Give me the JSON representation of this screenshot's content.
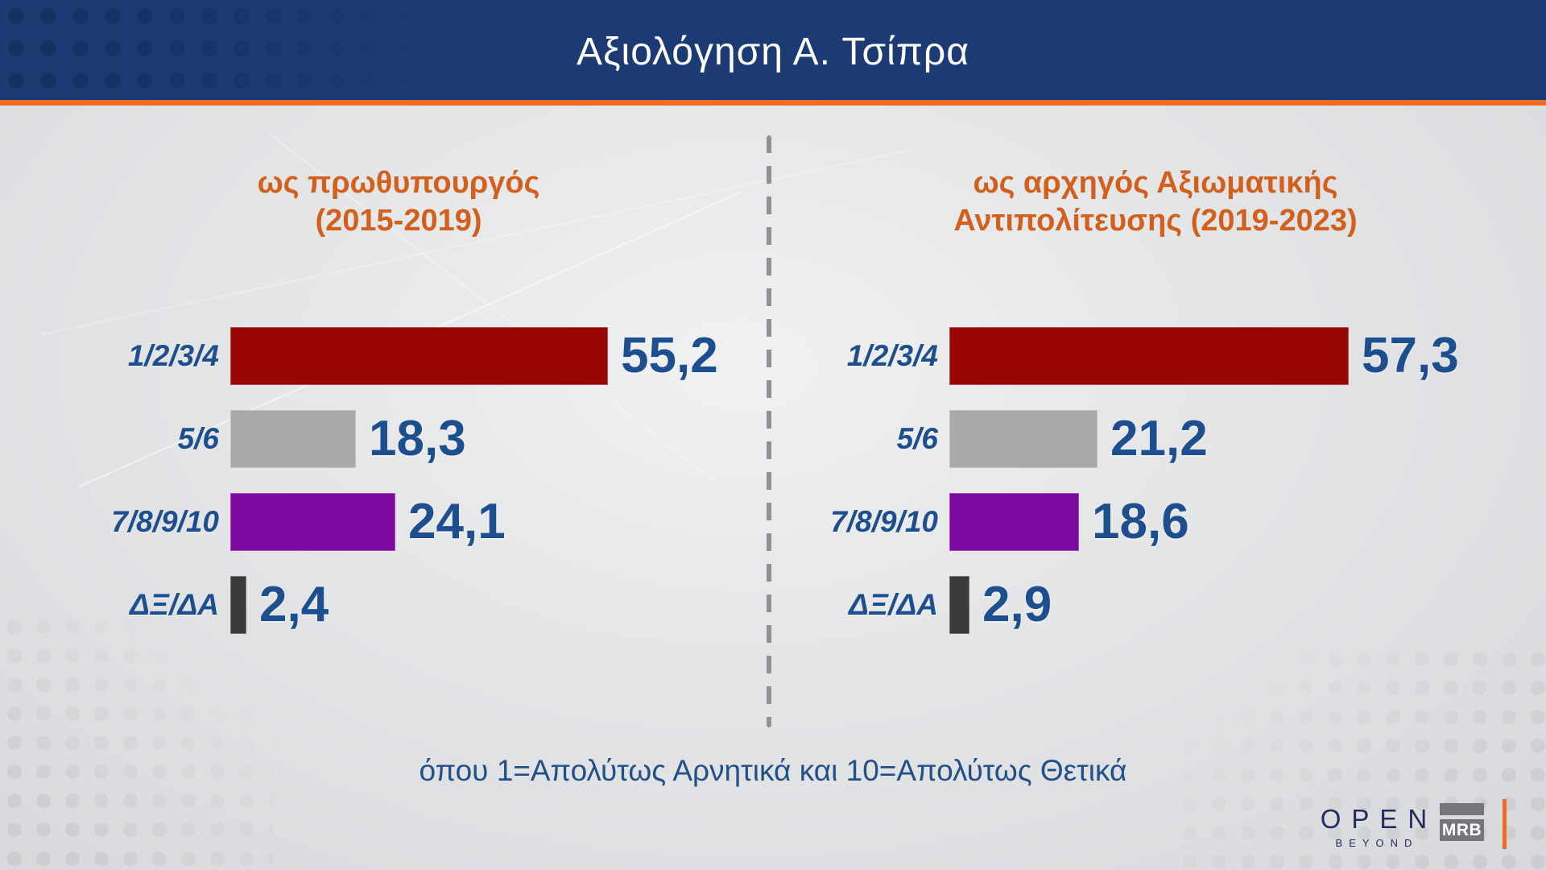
{
  "header": {
    "title": "Αξιολόγηση Α. Τσίπρα"
  },
  "footer": {
    "note": "όπου 1=Απολύτως Αρνητικά και 10=Απολύτως Θετικά"
  },
  "branding": {
    "open_word": "OPEN",
    "open_tagline": "BEYOND",
    "mrb": "MRB"
  },
  "colors": {
    "banner_blue": "#1c3a74",
    "accent_orange": "#f26b21",
    "heading_orange": "#d2601c",
    "text_blue": "#1d4e8d",
    "bar_red": "#990606",
    "bar_gray": "#a9a9a9",
    "bar_purple": "#7d0aa0",
    "bar_dark": "#3a3a3a",
    "background_gray": "#e4e5e7",
    "divider_gray": "#8f9196"
  },
  "chart_data": [
    {
      "type": "bar",
      "orientation": "horizontal",
      "title": "ως πρωθυπουργός (2015-2019)",
      "title_lines": [
        "ως πρωθυπουργός",
        "(2015-2019)"
      ],
      "categories": [
        "1/2/3/4",
        "5/6",
        "7/8/9/10",
        "ΔΞ/ΔΑ"
      ],
      "values": [
        55.2,
        18.3,
        24.1,
        2.4
      ],
      "value_labels": [
        "55,2",
        "18,3",
        "24,1",
        "2,4"
      ],
      "bar_colors": [
        "#990606",
        "#a9a9a9",
        "#7d0aa0",
        "#3a3a3a"
      ],
      "xlim": [
        0,
        60
      ],
      "grid": false,
      "legend": false
    },
    {
      "type": "bar",
      "orientation": "horizontal",
      "title": "ως αρχηγός Αξιωματικής Αντιπολίτευσης (2019-2023)",
      "title_lines": [
        "ως αρχηγός Αξιωματικής",
        "Αντιπολίτευσης (2019-2023)"
      ],
      "categories": [
        "1/2/3/4",
        "5/6",
        "7/8/9/10",
        "ΔΞ/ΔΑ"
      ],
      "values": [
        57.3,
        21.2,
        18.6,
        2.9
      ],
      "value_labels": [
        "57,3",
        "21,2",
        "18,6",
        "2,9"
      ],
      "bar_colors": [
        "#990606",
        "#a9a9a9",
        "#7d0aa0",
        "#3a3a3a"
      ],
      "xlim": [
        0,
        60
      ],
      "grid": false,
      "legend": false
    }
  ]
}
